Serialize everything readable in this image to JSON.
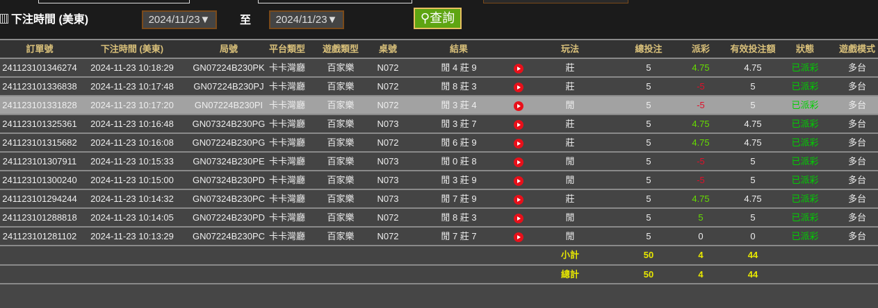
{
  "filter": {
    "label": "下注時間 (美東)",
    "from": "2024/11/23▼",
    "to_label": "至",
    "to": "2024/11/23▼",
    "query_button": "查詢"
  },
  "colors": {
    "accent_green": "#5ea512",
    "header_text": "#d9c07a",
    "payout_positive": "#66dd00",
    "payout_negative": "#e0102a",
    "status": "#00d000",
    "total": "#e8e800"
  },
  "table": {
    "headers": [
      "訂單號",
      "下注時間 (美東)",
      "局號",
      "平台類型",
      "遊戲類型",
      "桌號",
      "結果",
      "",
      "玩法",
      "總投注",
      "派彩",
      "有效投注額",
      "狀態",
      "遊戲模式"
    ],
    "rows": [
      {
        "order": "241123101346274",
        "time": "2024-11-23 10:18:29",
        "round": "GN07224B230PK",
        "platform": "卡卡灣廳",
        "game": "百家樂",
        "table": "N072",
        "result": "閒 4 莊 9",
        "bet": "莊",
        "total": "5",
        "payout": "4.75",
        "valid": "4.75",
        "status": "已派彩",
        "mode": "多台"
      },
      {
        "order": "241123101336838",
        "time": "2024-11-23 10:17:48",
        "round": "GN07224B230PJ",
        "platform": "卡卡灣廳",
        "game": "百家樂",
        "table": "N072",
        "result": "閒 8 莊 3",
        "bet": "莊",
        "total": "5",
        "payout": "-5",
        "valid": "5",
        "status": "已派彩",
        "mode": "多台"
      },
      {
        "order": "241123101331828",
        "time": "2024-11-23 10:17:20",
        "round": "GN07224B230PI",
        "platform": "卡卡灣廳",
        "game": "百家樂",
        "table": "N072",
        "result": "閒 3 莊 4",
        "bet": "閒",
        "total": "5",
        "payout": "-5",
        "valid": "5",
        "status": "已派彩",
        "mode": "多台"
      },
      {
        "order": "241123101325361",
        "time": "2024-11-23 10:16:48",
        "round": "GN07324B230PG",
        "platform": "卡卡灣廳",
        "game": "百家樂",
        "table": "N073",
        "result": "閒 3 莊 7",
        "bet": "莊",
        "total": "5",
        "payout": "4.75",
        "valid": "4.75",
        "status": "已派彩",
        "mode": "多台"
      },
      {
        "order": "241123101315682",
        "time": "2024-11-23 10:16:08",
        "round": "GN07224B230PG",
        "platform": "卡卡灣廳",
        "game": "百家樂",
        "table": "N072",
        "result": "閒 6 莊 9",
        "bet": "莊",
        "total": "5",
        "payout": "4.75",
        "valid": "4.75",
        "status": "已派彩",
        "mode": "多台"
      },
      {
        "order": "241123101307911",
        "time": "2024-11-23 10:15:33",
        "round": "GN07324B230PE",
        "platform": "卡卡灣廳",
        "game": "百家樂",
        "table": "N073",
        "result": "閒 0 莊 8",
        "bet": "閒",
        "total": "5",
        "payout": "-5",
        "valid": "5",
        "status": "已派彩",
        "mode": "多台"
      },
      {
        "order": "241123101300240",
        "time": "2024-11-23 10:15:00",
        "round": "GN07324B230PD",
        "platform": "卡卡灣廳",
        "game": "百家樂",
        "table": "N073",
        "result": "閒 3 莊 9",
        "bet": "閒",
        "total": "5",
        "payout": "-5",
        "valid": "5",
        "status": "已派彩",
        "mode": "多台"
      },
      {
        "order": "241123101294244",
        "time": "2024-11-23 10:14:32",
        "round": "GN07324B230PC",
        "platform": "卡卡灣廳",
        "game": "百家樂",
        "table": "N073",
        "result": "閒 7 莊 9",
        "bet": "莊",
        "total": "5",
        "payout": "4.75",
        "valid": "4.75",
        "status": "已派彩",
        "mode": "多台"
      },
      {
        "order": "241123101288818",
        "time": "2024-11-23 10:14:05",
        "round": "GN07224B230PD",
        "platform": "卡卡灣廳",
        "game": "百家樂",
        "table": "N072",
        "result": "閒 8 莊 3",
        "bet": "閒",
        "total": "5",
        "payout": "5",
        "valid": "5",
        "status": "已派彩",
        "mode": "多台"
      },
      {
        "order": "241123101281102",
        "time": "2024-11-23 10:13:29",
        "round": "GN07224B230PC",
        "platform": "卡卡灣廳",
        "game": "百家樂",
        "table": "N072",
        "result": "閒 7 莊 7",
        "bet": "閒",
        "total": "5",
        "payout": "0",
        "valid": "0",
        "status": "已派彩",
        "mode": "多台"
      }
    ],
    "highlighted_row": 2,
    "subtotal": {
      "label": "小計",
      "total": "50",
      "payout": "4",
      "valid": "44"
    },
    "grand_total": {
      "label": "總計",
      "total": "50",
      "payout": "4",
      "valid": "44"
    }
  }
}
